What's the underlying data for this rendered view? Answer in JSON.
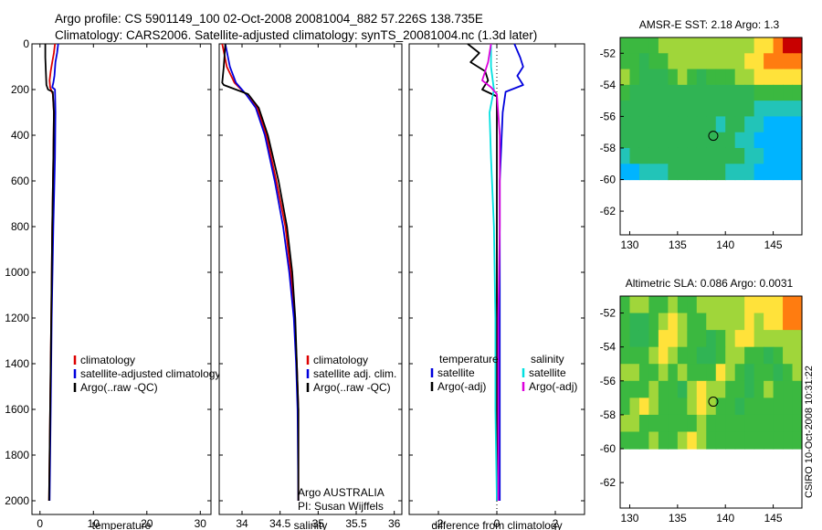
{
  "header": {
    "line1": "Argo profile: CS 5901149_100 02-Oct-2008 20081004_882 57.226S 138.735E",
    "line2": "Climatology: CARS2006. Satellite-adjusted climatology: synTS_20081004.nc (1.3d later)"
  },
  "side_stamp": "CSIRO 10-Oct-2008 10:31:22",
  "colors": {
    "red": "#dd0000",
    "blue": "#0000dd",
    "black": "#000000",
    "cyan": "#00e0e0",
    "magenta": "#dd00dd"
  },
  "chart_data": [
    {
      "id": "temperature",
      "type": "line",
      "xlabel": "temperature",
      "ylabel": "",
      "xlim": [
        -1.5,
        32
      ],
      "ylim": [
        2060,
        0
      ],
      "xticks": [
        0,
        10,
        20,
        30
      ],
      "yticks": [
        0,
        200,
        400,
        600,
        800,
        1000,
        1200,
        1400,
        1600,
        1800,
        2000
      ],
      "legend": {
        "placement": "lower-right",
        "entries": [
          "climatology",
          "satellite-adjusted climatology",
          "Argo(..raw -QC)"
        ]
      },
      "series": [
        {
          "name": "climatology",
          "color": "red",
          "points": [
            [
              2.8,
              0
            ],
            [
              2.6,
              40
            ],
            [
              2.3,
              80
            ],
            [
              2.0,
              120
            ],
            [
              1.8,
              160
            ],
            [
              1.9,
              190
            ],
            [
              2.4,
              220
            ],
            [
              2.6,
              300
            ],
            [
              2.5,
              500
            ],
            [
              2.3,
              800
            ],
            [
              2.1,
              1200
            ],
            [
              1.9,
              1600
            ],
            [
              1.7,
              2000
            ]
          ]
        },
        {
          "name": "satellite-adjusted climatology",
          "color": "blue",
          "points": [
            [
              3.4,
              0
            ],
            [
              3.2,
              40
            ],
            [
              2.9,
              80
            ],
            [
              2.7,
              140
            ],
            [
              2.5,
              170
            ],
            [
              2.3,
              190
            ],
            [
              2.8,
              200
            ],
            [
              2.9,
              300
            ],
            [
              2.8,
              500
            ],
            [
              2.5,
              800
            ],
            [
              2.2,
              1200
            ],
            [
              2.0,
              1600
            ],
            [
              1.8,
              2000
            ]
          ]
        },
        {
          "name": "Argo(..raw -QC)",
          "color": "black",
          "points": [
            [
              1.0,
              0
            ],
            [
              1.0,
              60
            ],
            [
              1.1,
              120
            ],
            [
              1.2,
              180
            ],
            [
              1.5,
              200
            ],
            [
              2.4,
              210
            ],
            [
              2.6,
              300
            ],
            [
              2.5,
              500
            ],
            [
              2.3,
              800
            ],
            [
              2.1,
              1200
            ],
            [
              1.9,
              1600
            ],
            [
              1.7,
              2000
            ]
          ]
        }
      ]
    },
    {
      "id": "salinity",
      "type": "line",
      "xlabel": "salinity",
      "ylabel": "",
      "xlim": [
        33.7,
        36.1
      ],
      "ylim": [
        2060,
        0
      ],
      "xticks": [
        34,
        34.5,
        35,
        35.5,
        36
      ],
      "legend": {
        "placement": "lower-right",
        "entries": [
          "climatology",
          "satellite adj. clim.",
          "Argo(..raw -QC)"
        ]
      },
      "annotation": [
        "Argo AUSTRALIA",
        "PI: Susan Wijffels"
      ],
      "series": [
        {
          "name": "climatology",
          "color": "red",
          "points": [
            [
              33.74,
              0
            ],
            [
              33.8,
              100
            ],
            [
              33.9,
              170
            ],
            [
              34.05,
              220
            ],
            [
              34.2,
              280
            ],
            [
              34.32,
              400
            ],
            [
              34.45,
              600
            ],
            [
              34.57,
              800
            ],
            [
              34.64,
              1000
            ],
            [
              34.69,
              1200
            ],
            [
              34.72,
              1400
            ],
            [
              34.74,
              1600
            ],
            [
              34.74,
              2000
            ]
          ]
        },
        {
          "name": "satellite adj. clim.",
          "color": "blue",
          "points": [
            [
              33.78,
              0
            ],
            [
              33.84,
              100
            ],
            [
              33.92,
              170
            ],
            [
              34.05,
              220
            ],
            [
              34.18,
              280
            ],
            [
              34.3,
              400
            ],
            [
              34.43,
              600
            ],
            [
              34.54,
              800
            ],
            [
              34.62,
              1000
            ],
            [
              34.68,
              1200
            ],
            [
              34.71,
              1400
            ],
            [
              34.73,
              1600
            ],
            [
              34.74,
              2000
            ]
          ]
        },
        {
          "name": "Argo(..raw -QC)",
          "color": "black",
          "points": [
            [
              33.78,
              0
            ],
            [
              33.76,
              100
            ],
            [
              33.74,
              170
            ],
            [
              33.76,
              180
            ],
            [
              33.92,
              200
            ],
            [
              34.08,
              220
            ],
            [
              34.22,
              280
            ],
            [
              34.34,
              400
            ],
            [
              34.48,
              600
            ],
            [
              34.59,
              800
            ],
            [
              34.66,
              1000
            ],
            [
              34.7,
              1200
            ],
            [
              34.72,
              1400
            ],
            [
              34.74,
              1600
            ],
            [
              34.74,
              2000
            ]
          ]
        }
      ]
    },
    {
      "id": "difference",
      "type": "line",
      "xlabel": "difference from climatology",
      "ylabel": "",
      "xlim": [
        -3.0,
        3.0
      ],
      "ylim": [
        2060,
        0
      ],
      "xticks": [
        -2,
        0,
        2
      ],
      "legend": {
        "placement": "lower-right",
        "groups": [
          {
            "title": "temperature",
            "entries": [
              "satellite",
              "Argo(-adj)"
            ]
          },
          {
            "title": "salinity",
            "entries": [
              "satellite",
              "Argo(-adj)"
            ]
          }
        ]
      },
      "series": [
        {
          "name": "temperature satellite",
          "color": "blue",
          "points": [
            [
              0.6,
              0
            ],
            [
              0.8,
              60
            ],
            [
              0.9,
              100
            ],
            [
              0.7,
              140
            ],
            [
              0.9,
              180
            ],
            [
              0.3,
              210
            ],
            [
              0.2,
              300
            ],
            [
              0.1,
              600
            ],
            [
              0.1,
              1000
            ],
            [
              0.1,
              1500
            ],
            [
              0.1,
              2000
            ]
          ]
        },
        {
          "name": "temperature Argo(-adj)",
          "color": "black",
          "points": [
            [
              -1.0,
              0
            ],
            [
              -0.6,
              40
            ],
            [
              -0.9,
              80
            ],
            [
              -0.4,
              120
            ],
            [
              -0.3,
              160
            ],
            [
              -0.5,
              200
            ],
            [
              0.0,
              230
            ],
            [
              0.0,
              400
            ],
            [
              0.0,
              1000
            ],
            [
              0.0,
              1500
            ],
            [
              0.0,
              2000
            ]
          ]
        },
        {
          "name": "salinity satellite",
          "color": "cyan",
          "points": [
            [
              -0.2,
              0
            ],
            [
              -0.2,
              100
            ],
            [
              -0.1,
              200
            ],
            [
              -0.25,
              300
            ],
            [
              -0.2,
              500
            ],
            [
              -0.1,
              800
            ],
            [
              -0.05,
              1200
            ],
            [
              -0.05,
              1600
            ],
            [
              0.0,
              2000
            ]
          ]
        },
        {
          "name": "salinity Argo(-adj)",
          "color": "magenta",
          "points": [
            [
              -0.2,
              0
            ],
            [
              -0.3,
              80
            ],
            [
              -0.5,
              160
            ],
            [
              -0.2,
              190
            ],
            [
              0.0,
              220
            ],
            [
              0.1,
              400
            ],
            [
              0.1,
              800
            ],
            [
              0.05,
              1200
            ],
            [
              0.05,
              2000
            ]
          ]
        }
      ]
    },
    {
      "id": "sst-map",
      "type": "heatmap",
      "title": "AMSR-E SST: 2.18  Argo: 1.3",
      "xlim": [
        129,
        148
      ],
      "ylim": [
        -63.5,
        -51
      ],
      "xticks": [
        130,
        135,
        140,
        145
      ],
      "yticks": [
        -52,
        -54,
        -56,
        -58,
        -60,
        -62
      ],
      "data_lat_range": [
        -60,
        -51
      ],
      "marker": [
        138.735,
        -57.226
      ],
      "colorscale": [
        "#1050c0",
        "#00b4ff",
        "#22c4b8",
        "#30b454",
        "#3bb840",
        "#a0d63a",
        "#ffe23a",
        "#ff7c10",
        "#c80000"
      ],
      "grid": [
        [
          4,
          4,
          4,
          4,
          5,
          5,
          5,
          5,
          5,
          5,
          5,
          5,
          5,
          5,
          6,
          6,
          7,
          8,
          8
        ],
        [
          4,
          4,
          3,
          4,
          4,
          5,
          5,
          5,
          5,
          5,
          5,
          5,
          5,
          6,
          6,
          7,
          7,
          7,
          7
        ],
        [
          5,
          4,
          3,
          3,
          3,
          4,
          5,
          4,
          3,
          4,
          4,
          4,
          5,
          5,
          6,
          6,
          6,
          6,
          6
        ],
        [
          4,
          3,
          3,
          3,
          3,
          3,
          3,
          3,
          3,
          3,
          3,
          3,
          3,
          3,
          4,
          4,
          4,
          4,
          4
        ],
        [
          3,
          3,
          3,
          3,
          3,
          3,
          3,
          3,
          3,
          3,
          3,
          3,
          3,
          3,
          2,
          2,
          2,
          2,
          2
        ],
        [
          3,
          3,
          3,
          3,
          3,
          3,
          3,
          3,
          3,
          3,
          2,
          3,
          3,
          2,
          2,
          1,
          1,
          1,
          1
        ],
        [
          3,
          3,
          3,
          3,
          3,
          3,
          3,
          3,
          3,
          3,
          3,
          3,
          2,
          2,
          1,
          1,
          1,
          1,
          1
        ],
        [
          2,
          3,
          3,
          3,
          3,
          3,
          3,
          3,
          3,
          3,
          3,
          3,
          3,
          2,
          2,
          1,
          1,
          1,
          1
        ],
        [
          1,
          1,
          2,
          2,
          2,
          3,
          3,
          3,
          3,
          3,
          3,
          2,
          2,
          2,
          1,
          1,
          1,
          1,
          1
        ]
      ]
    },
    {
      "id": "sla-map",
      "type": "heatmap",
      "title": "Altimetric SLA: 0.086  Argo: 0.0031",
      "xlim": [
        129,
        148
      ],
      "ylim": [
        -63.5,
        -51
      ],
      "xticks": [
        130,
        135,
        140,
        145
      ],
      "yticks": [
        -52,
        -54,
        -56,
        -58,
        -60,
        -62
      ],
      "data_lat_range": [
        -60,
        -51
      ],
      "marker": [
        138.735,
        -57.226
      ],
      "colorscale": [
        "#1050c0",
        "#00b4ff",
        "#22c4b8",
        "#30b454",
        "#3bb840",
        "#a0d63a",
        "#ffe23a",
        "#ff7c10",
        "#c80000"
      ],
      "grid": [
        [
          4,
          5,
          5,
          4,
          4,
          5,
          4,
          4,
          5,
          5,
          5,
          5,
          5,
          6,
          6,
          6,
          6,
          7,
          7
        ],
        [
          4,
          3,
          3,
          4,
          5,
          6,
          5,
          4,
          4,
          5,
          5,
          5,
          5,
          6,
          5,
          6,
          6,
          7,
          7
        ],
        [
          4,
          3,
          3,
          4,
          6,
          6,
          5,
          4,
          4,
          3,
          4,
          5,
          6,
          6,
          5,
          5,
          5,
          5,
          5
        ],
        [
          4,
          4,
          4,
          5,
          6,
          5,
          4,
          4,
          3,
          3,
          4,
          5,
          5,
          4,
          4,
          3,
          4,
          5,
          5
        ],
        [
          5,
          5,
          4,
          4,
          5,
          4,
          5,
          4,
          4,
          4,
          6,
          5,
          4,
          3,
          4,
          4,
          3,
          4,
          5
        ],
        [
          4,
          4,
          4,
          5,
          4,
          4,
          3,
          5,
          6,
          5,
          5,
          4,
          4,
          3,
          4,
          5,
          4,
          4,
          4
        ],
        [
          4,
          5,
          6,
          5,
          4,
          4,
          4,
          5,
          6,
          5,
          4,
          4,
          3,
          4,
          4,
          4,
          4,
          4,
          4
        ],
        [
          5,
          5,
          4,
          4,
          4,
          4,
          4,
          4,
          5,
          4,
          4,
          4,
          4,
          4,
          4,
          4,
          4,
          4,
          4
        ],
        [
          4,
          4,
          4,
          5,
          4,
          4,
          5,
          6,
          5,
          4,
          4,
          4,
          4,
          4,
          4,
          4,
          4,
          4,
          4
        ]
      ]
    }
  ]
}
